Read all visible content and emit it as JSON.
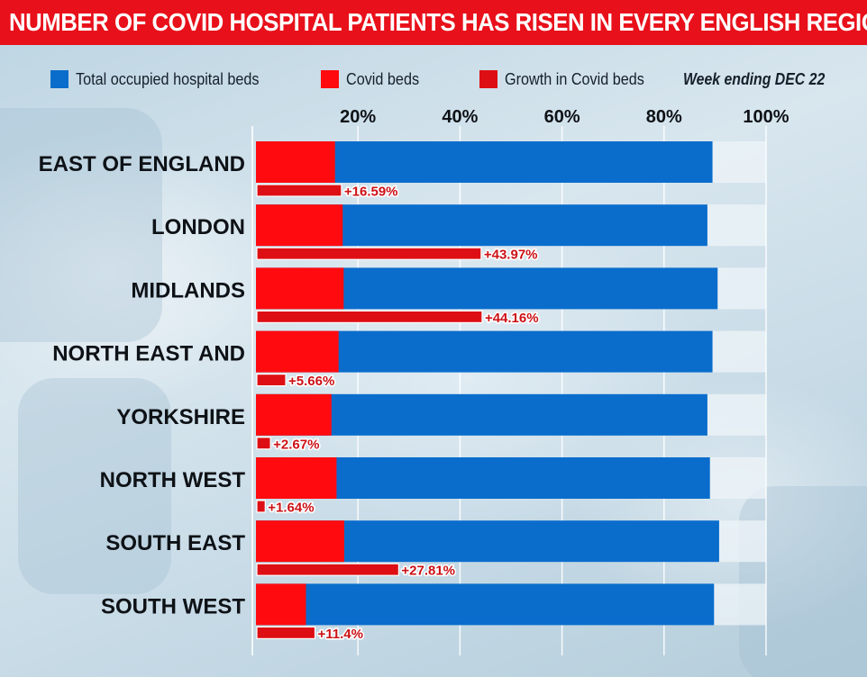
{
  "title": "NUMBER OF COVID HOSPITAL PATIENTS HAS RISEN IN EVERY ENGLISH REGION",
  "colors": {
    "title_bg": "#e8101a",
    "total_beds": "#0a6dcc",
    "covid_beds": "#ff0b0f",
    "growth": "#dd0f14",
    "growth_label": "#cc1116",
    "track": "#eef4f8"
  },
  "legend": [
    {
      "label": "Total occupied hospital beds",
      "color": "#0a6dcc"
    },
    {
      "label": "Covid beds",
      "color": "#ff0b0f"
    },
    {
      "label": "Growth in Covid beds",
      "color": "#dd0f14"
    }
  ],
  "week_label": "Week ending DEC 22",
  "chart_data": {
    "type": "bar",
    "orientation": "horizontal",
    "title": "NUMBER OF COVID HOSPITAL PATIENTS HAS RISEN IN EVERY ENGLISH REGION",
    "xlim": [
      0,
      100
    ],
    "x_ticks": [
      "20%",
      "40%",
      "60%",
      "80%",
      "100%"
    ],
    "x_tick_values": [
      20,
      40,
      60,
      80,
      100
    ],
    "grid": true,
    "categories": [
      "EAST OF ENGLAND",
      "LONDON",
      "MIDLANDS",
      "NORTH EAST AND",
      "YORKSHIRE",
      "NORTH WEST",
      "SOUTH EAST",
      "SOUTH WEST"
    ],
    "series": [
      {
        "name": "Total occupied hospital beds",
        "values": [
          89.5,
          88.5,
          90.5,
          89.5,
          88.5,
          89.0,
          90.8,
          89.8
        ]
      },
      {
        "name": "Covid beds",
        "values": [
          15.5,
          17.0,
          17.2,
          16.2,
          14.8,
          15.8,
          17.3,
          9.8
        ]
      },
      {
        "name": "Growth in Covid beds",
        "values": [
          16.59,
          43.97,
          44.16,
          5.66,
          2.67,
          1.64,
          27.81,
          11.4
        ],
        "labels": [
          "+16.59%",
          "+43.97%",
          "+44.16%",
          "+5.66%",
          "+2.67%",
          "+1.64%",
          "+27.81%",
          "+11.4%"
        ]
      }
    ]
  }
}
